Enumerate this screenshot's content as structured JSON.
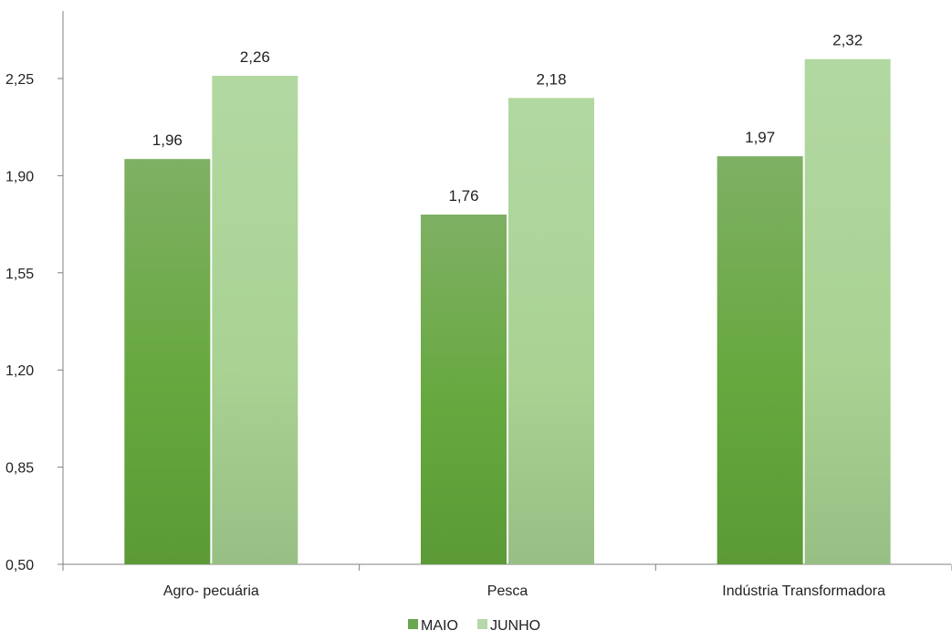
{
  "chart_data": {
    "type": "bar",
    "categories": [
      "Agro- pecuária",
      "Pesca",
      "Indústria Transformadora"
    ],
    "series": [
      {
        "name": "MAIO",
        "values": [
          1.96,
          1.76,
          1.97
        ],
        "labels": [
          "1,96",
          "1,76",
          "1,97"
        ],
        "color": "#6aa84f"
      },
      {
        "name": "JUNHO",
        "values": [
          2.26,
          2.18,
          2.32
        ],
        "labels": [
          "2,26",
          "2,18",
          "2,32"
        ],
        "color": "#b6d7a8"
      }
    ],
    "yticks": [
      "0,50",
      "0,85",
      "1,20",
      "1,55",
      "1,90",
      "2,25"
    ],
    "ylim": [
      0.5,
      2.5
    ],
    "grid": false,
    "legend": "bottom"
  }
}
